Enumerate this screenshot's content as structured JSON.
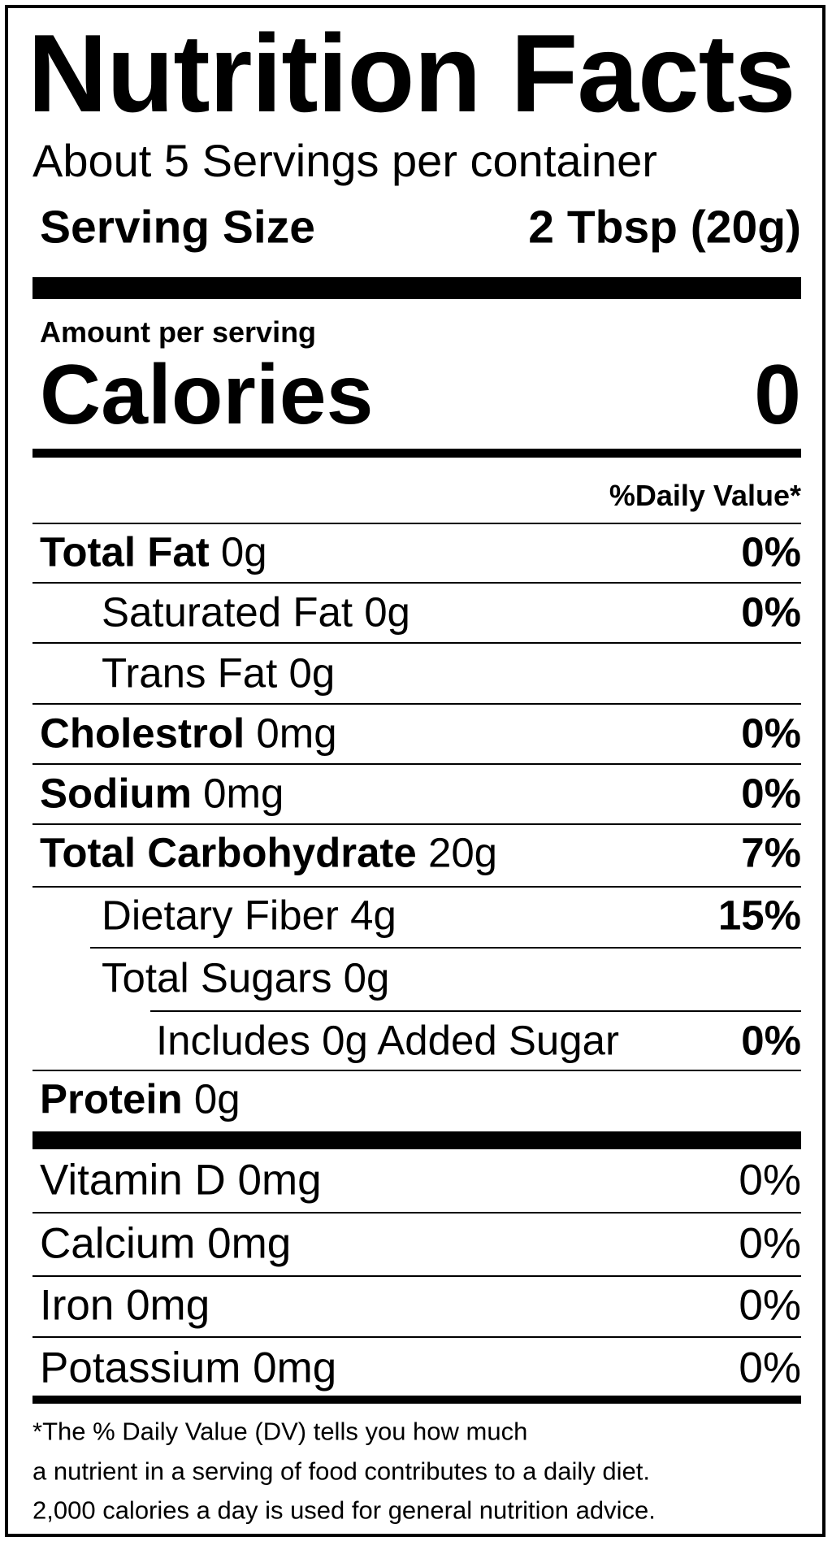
{
  "title": "Nutrition Facts",
  "servings_per_container": "About 5 Servings per container",
  "serving_size": {
    "label": "Serving Size",
    "value": "2 Tbsp (20g)"
  },
  "amount_per_serving": "Amount per serving",
  "calories": {
    "label": "Calories",
    "value": "0"
  },
  "daily_value_header": "%Daily Value*",
  "nutrients": [
    {
      "name": "Total Fat",
      "amount": "0g",
      "dv": "0%"
    },
    {
      "name": "Saturated Fat",
      "amount": "0g",
      "dv": "0%"
    },
    {
      "name": "Trans Fat",
      "amount": "0g"
    },
    {
      "name": "Cholestrol",
      "amount": "0mg",
      "dv": "0%"
    },
    {
      "name": "Sodium",
      "amount": "0mg",
      "dv": "0%"
    },
    {
      "name": "Total Carbohydrate",
      "amount": "20g",
      "dv": "7%"
    },
    {
      "name": "Dietary Fiber",
      "amount": "4g",
      "dv": "15%"
    },
    {
      "name": "Total Sugars",
      "amount": "0g"
    },
    {
      "name": "Includes 0g Added Sugar",
      "dv": "0%"
    },
    {
      "name": "Protein",
      "amount": "0g"
    }
  ],
  "vitamins": [
    {
      "name": "Vitamin D",
      "amount": "0mg",
      "dv": "0%"
    },
    {
      "name": "Calcium",
      "amount": "0mg",
      "dv": "0%"
    },
    {
      "name": "Iron",
      "amount": "0mg",
      "dv": "0%"
    },
    {
      "name": "Potassium",
      "amount": "0mg",
      "dv": "0%"
    }
  ],
  "footnote": [
    "*The % Daily Value (DV) tells you how much",
    "a nutrient in a serving of food contributes to a daily diet.",
    "2,000 calories a day is used for general nutrition advice."
  ]
}
